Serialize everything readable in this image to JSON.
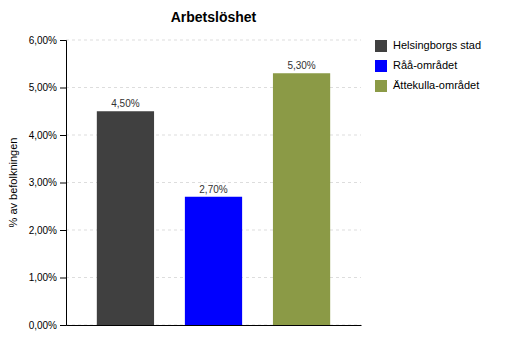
{
  "chart_data": {
    "type": "bar",
    "title": "Arbetslöshet",
    "ylabel": "% av befolkningen",
    "categories": [
      "Helsingborgs stad",
      "Råå-området",
      "Ättekulla-området"
    ],
    "values": [
      4.5,
      2.7,
      5.3
    ],
    "value_labels": [
      "4,50%",
      "2,70%",
      "5,30%"
    ],
    "data_labels": true,
    "colors": [
      "#404040",
      "#0000FF",
      "#8B9A46"
    ],
    "ylim": [
      0,
      6.0
    ],
    "yticks": [
      {
        "value": 0.0,
        "label": "0,00%"
      },
      {
        "value": 1.0,
        "label": "1,00%"
      },
      {
        "value": 2.0,
        "label": "2,00%"
      },
      {
        "value": 3.0,
        "label": "3,00%"
      },
      {
        "value": 4.0,
        "label": "4,00%"
      },
      {
        "value": 5.0,
        "label": "5,00%"
      },
      {
        "value": 6.0,
        "label": "6,00%"
      }
    ],
    "grid": true,
    "legend": "right",
    "tick_labels": "y"
  }
}
